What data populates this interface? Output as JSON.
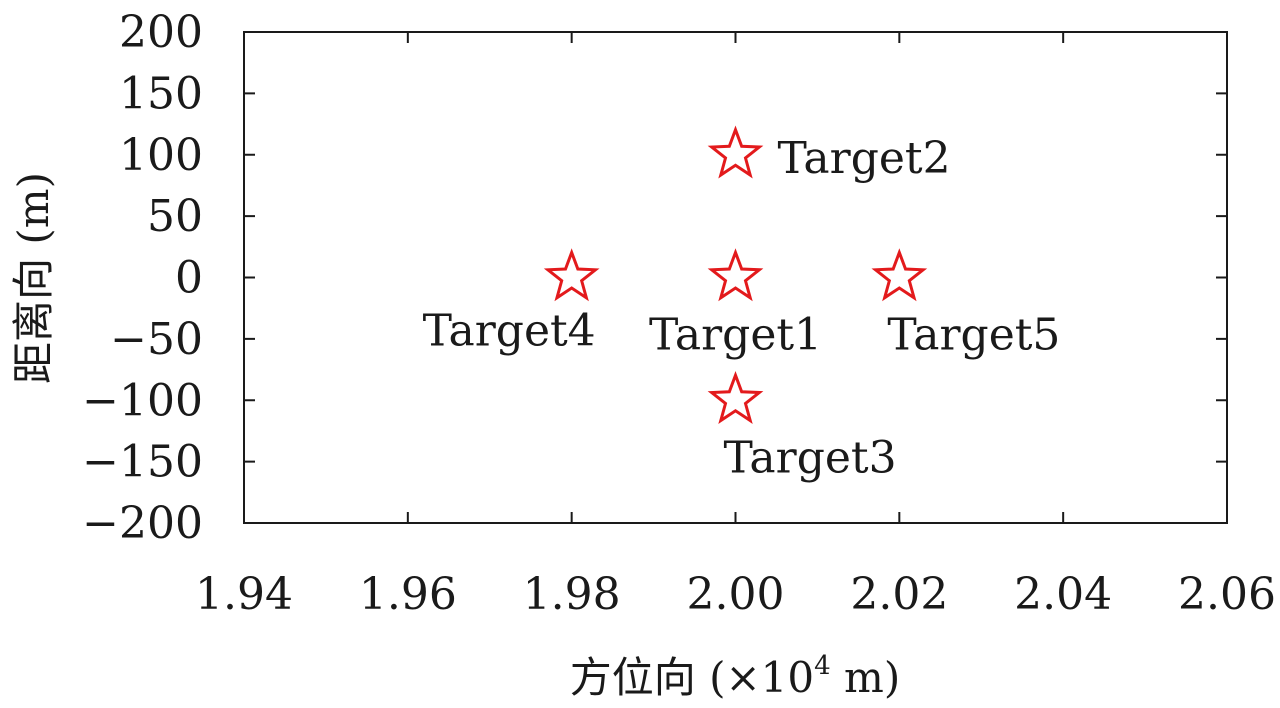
{
  "chart_data": {
    "type": "scatter",
    "xlabel_main": "方位向 (×10",
    "xlabel_sup": "4",
    "xlabel_end": " m)",
    "ylabel": "距离向 (m)",
    "xlim": [
      1.94,
      2.06
    ],
    "ylim": [
      -200,
      200
    ],
    "x_ticks": [
      1.94,
      1.96,
      1.98,
      2.0,
      2.02,
      2.04,
      2.06
    ],
    "x_tick_labels": [
      "1.94",
      "1.96",
      "1.98",
      "2.00",
      "2.02",
      "2.04",
      "2.06"
    ],
    "y_ticks": [
      200,
      150,
      100,
      50,
      0,
      -50,
      -100,
      -150,
      -200
    ],
    "y_tick_labels": [
      "200",
      "150",
      "100",
      "50",
      "0",
      "−50",
      "−100",
      "−150",
      "−200"
    ],
    "grid": false,
    "marker": "star",
    "marker_color": "#e31a1c",
    "points": [
      {
        "label": "Target1",
        "x": 2.0,
        "y": 0,
        "label_pos": "below"
      },
      {
        "label": "Target2",
        "x": 2.0,
        "y": 100,
        "label_pos": "right"
      },
      {
        "label": "Target3",
        "x": 2.0,
        "y": -100,
        "label_pos": "below-right"
      },
      {
        "label": "Target4",
        "x": 1.98,
        "y": 0,
        "label_pos": "below-left"
      },
      {
        "label": "Target5",
        "x": 2.02,
        "y": 0,
        "label_pos": "below-right"
      }
    ]
  }
}
